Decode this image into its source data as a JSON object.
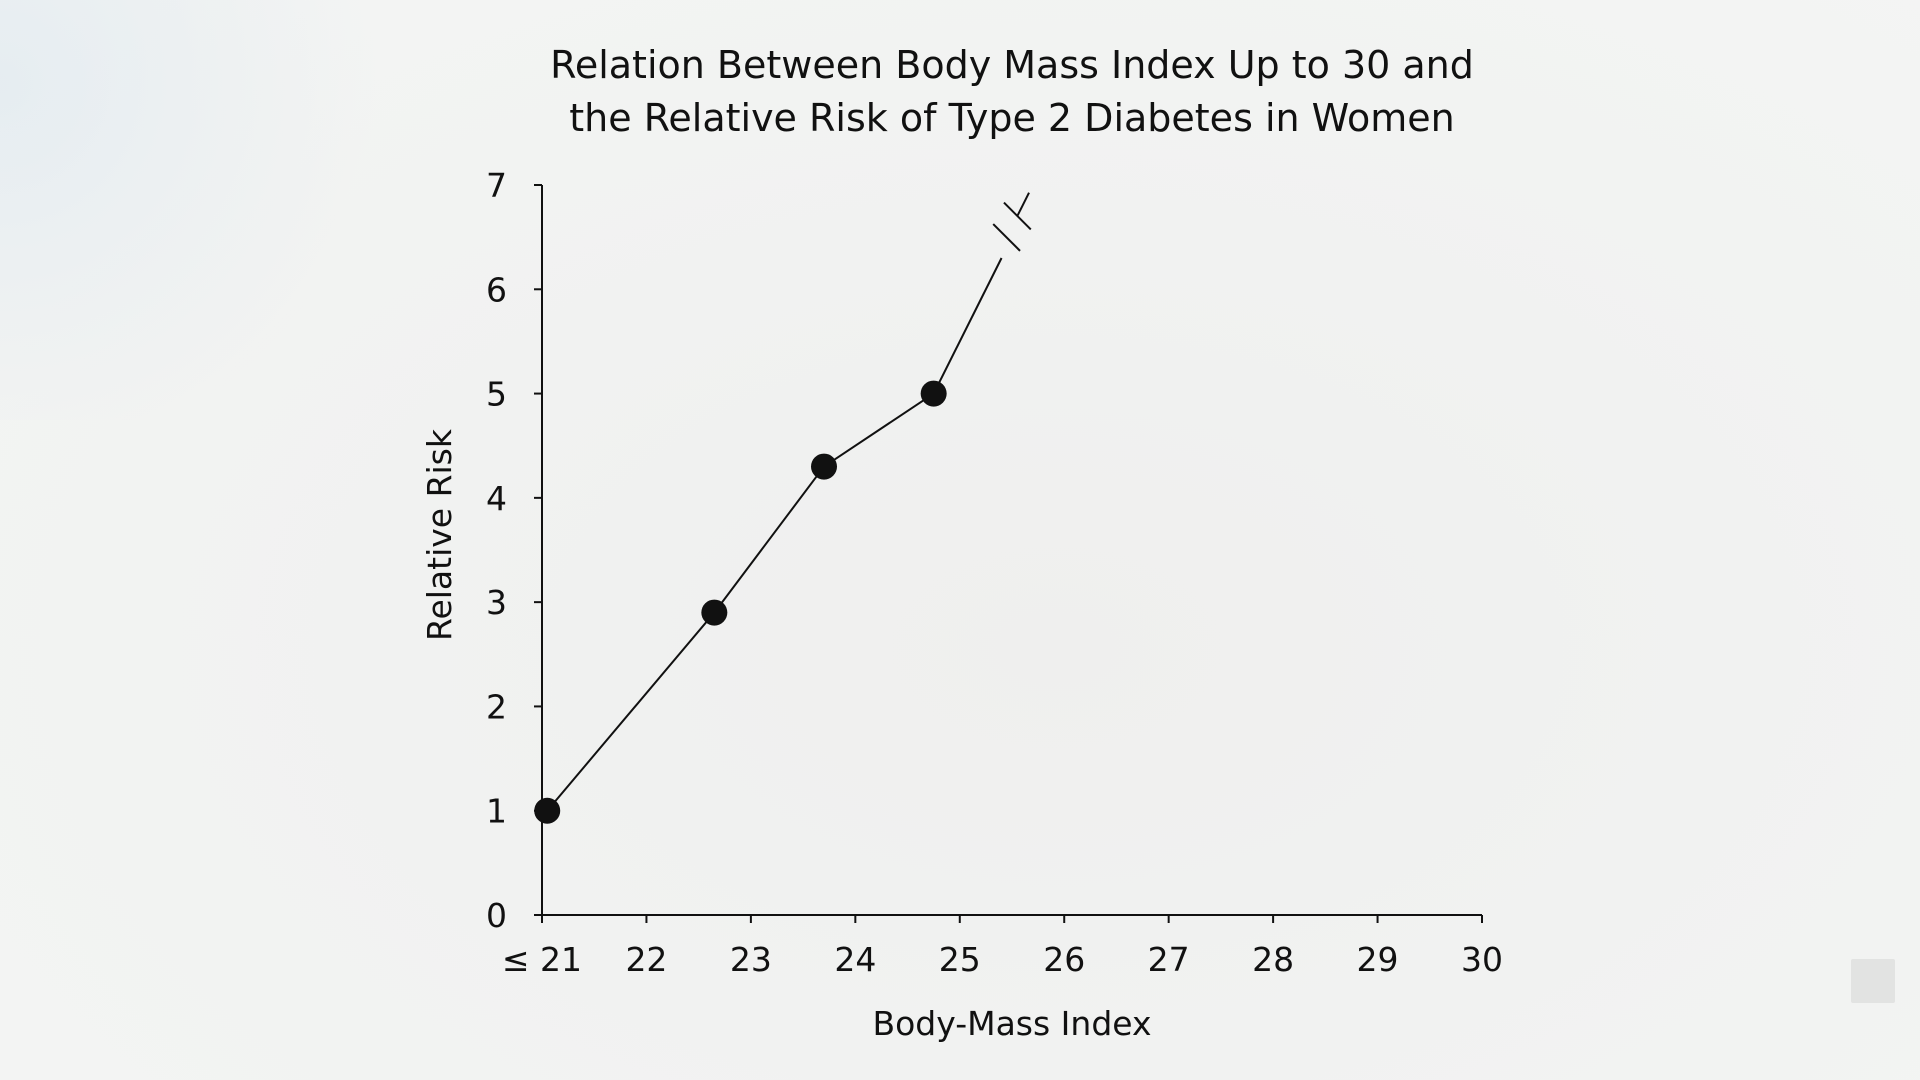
{
  "chart_data": {
    "type": "line",
    "title_lines": [
      "Relation Between Body Mass Index Up to 30 and",
      "the Relative Risk of Type 2 Diabetes in Women"
    ],
    "xlabel": "Body-Mass Index",
    "ylabel": "Relative Risk",
    "x_ticks": [
      21,
      22,
      23,
      24,
      25,
      26,
      27,
      28,
      29,
      30
    ],
    "x_tick_labels": [
      "≤ 21",
      "22",
      "23",
      "24",
      "25",
      "26",
      "27",
      "28",
      "29",
      "30"
    ],
    "y_ticks": [
      0,
      1,
      2,
      3,
      4,
      5,
      6,
      7
    ],
    "y_tick_labels": [
      "0",
      "1",
      "2",
      "3",
      "4",
      "5",
      "6",
      "7"
    ],
    "xlim": [
      21,
      30
    ],
    "ylim": [
      0,
      7
    ],
    "series": [
      {
        "points": [
          {
            "x": 21.05,
            "y": 1.0
          },
          {
            "x": 22.65,
            "y": 2.9
          },
          {
            "x": 23.7,
            "y": 4.3
          },
          {
            "x": 24.75,
            "y": 5.0
          }
        ],
        "continuation": [
          {
            "x": 24.75,
            "y": 5.0
          },
          {
            "x": 25.4,
            "y": 6.3
          }
        ],
        "break_marker": {
          "x": 25.5,
          "y": 6.6
        },
        "color": "#111111"
      }
    ],
    "grid": false,
    "legend": "none"
  }
}
